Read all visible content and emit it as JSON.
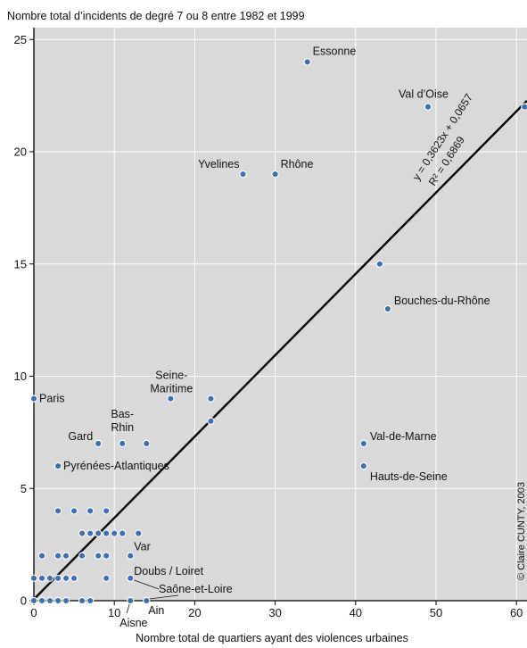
{
  "chart_data": {
    "type": "scatter",
    "title": "Nombre total d’incidents de degré 7 ou 8 entre 1982 et 1999",
    "xlabel": "Nombre total de quartiers ayant des violences urbaines",
    "ylabel": "",
    "xlim": [
      0,
      61
    ],
    "ylim": [
      0,
      25.5
    ],
    "xticks": [
      0,
      10,
      20,
      30,
      40,
      50,
      60
    ],
    "yticks": [
      0,
      5,
      10,
      15,
      20,
      25
    ],
    "grid": true,
    "background": "#d9d9d9",
    "point_color": "#3f6fb0",
    "regression": {
      "slope": 0.3623,
      "intercept": 0.0657,
      "equation": "y = 0,3623x + 0,0657",
      "r2": "R² = 0,6869"
    },
    "points": [
      {
        "x": 0,
        "y": 9,
        "label": "Paris"
      },
      {
        "x": 34,
        "y": 24,
        "label": "Essonne"
      },
      {
        "x": 49,
        "y": 22,
        "label": "Val d’Oise"
      },
      {
        "x": 61,
        "y": 22,
        "label": ""
      },
      {
        "x": 26,
        "y": 19,
        "label": "Yvelines"
      },
      {
        "x": 30,
        "y": 19,
        "label": "Rhône"
      },
      {
        "x": 43,
        "y": 15,
        "label": ""
      },
      {
        "x": 44,
        "y": 13,
        "label": "Bouches-du-Rhône"
      },
      {
        "x": 17,
        "y": 9,
        "label": "Seine-Maritime"
      },
      {
        "x": 22,
        "y": 9,
        "label": ""
      },
      {
        "x": 22,
        "y": 8,
        "label": ""
      },
      {
        "x": 8,
        "y": 7,
        "label": "Gard"
      },
      {
        "x": 11,
        "y": 7,
        "label": "Bas-Rhin"
      },
      {
        "x": 14,
        "y": 7,
        "label": ""
      },
      {
        "x": 41,
        "y": 7,
        "label": "Val-de-Marne"
      },
      {
        "x": 41,
        "y": 6,
        "label": "Hauts-de-Seine"
      },
      {
        "x": 3,
        "y": 6,
        "label": "Pyrénées-Atlantiques"
      },
      {
        "x": 3,
        "y": 4,
        "label": ""
      },
      {
        "x": 5,
        "y": 4,
        "label": ""
      },
      {
        "x": 7,
        "y": 4,
        "label": ""
      },
      {
        "x": 9,
        "y": 4,
        "label": ""
      },
      {
        "x": 6,
        "y": 3,
        "label": ""
      },
      {
        "x": 7,
        "y": 3,
        "label": ""
      },
      {
        "x": 8,
        "y": 3,
        "label": ""
      },
      {
        "x": 9,
        "y": 3,
        "label": ""
      },
      {
        "x": 10,
        "y": 3,
        "label": ""
      },
      {
        "x": 11,
        "y": 3,
        "label": ""
      },
      {
        "x": 13,
        "y": 3,
        "label": ""
      },
      {
        "x": 1,
        "y": 2,
        "label": ""
      },
      {
        "x": 3,
        "y": 2,
        "label": ""
      },
      {
        "x": 4,
        "y": 2,
        "label": ""
      },
      {
        "x": 6,
        "y": 2,
        "label": ""
      },
      {
        "x": 8,
        "y": 2,
        "label": ""
      },
      {
        "x": 9,
        "y": 2,
        "label": ""
      },
      {
        "x": 12,
        "y": 2,
        "label": "Var"
      },
      {
        "x": 0,
        "y": 1,
        "label": ""
      },
      {
        "x": 1,
        "y": 1,
        "label": ""
      },
      {
        "x": 2,
        "y": 1,
        "label": ""
      },
      {
        "x": 3,
        "y": 1,
        "label": ""
      },
      {
        "x": 4,
        "y": 1,
        "label": ""
      },
      {
        "x": 5,
        "y": 1,
        "label": ""
      },
      {
        "x": 9,
        "y": 1,
        "label": ""
      },
      {
        "x": 12,
        "y": 1,
        "label": "Doubs / Loiret"
      },
      {
        "x": 0,
        "y": 0,
        "label": ""
      },
      {
        "x": 1,
        "y": 0,
        "label": ""
      },
      {
        "x": 2,
        "y": 0,
        "label": ""
      },
      {
        "x": 3,
        "y": 0,
        "label": ""
      },
      {
        "x": 4,
        "y": 0,
        "label": ""
      },
      {
        "x": 6,
        "y": 0,
        "label": ""
      },
      {
        "x": 7,
        "y": 0,
        "label": ""
      },
      {
        "x": 12,
        "y": 0,
        "label": "Aisne"
      },
      {
        "x": 14,
        "y": 0,
        "label": "Ain"
      }
    ],
    "annotations": [
      "Saône-et-Loire"
    ]
  },
  "credit": "© Claire CUNTY, 2003"
}
